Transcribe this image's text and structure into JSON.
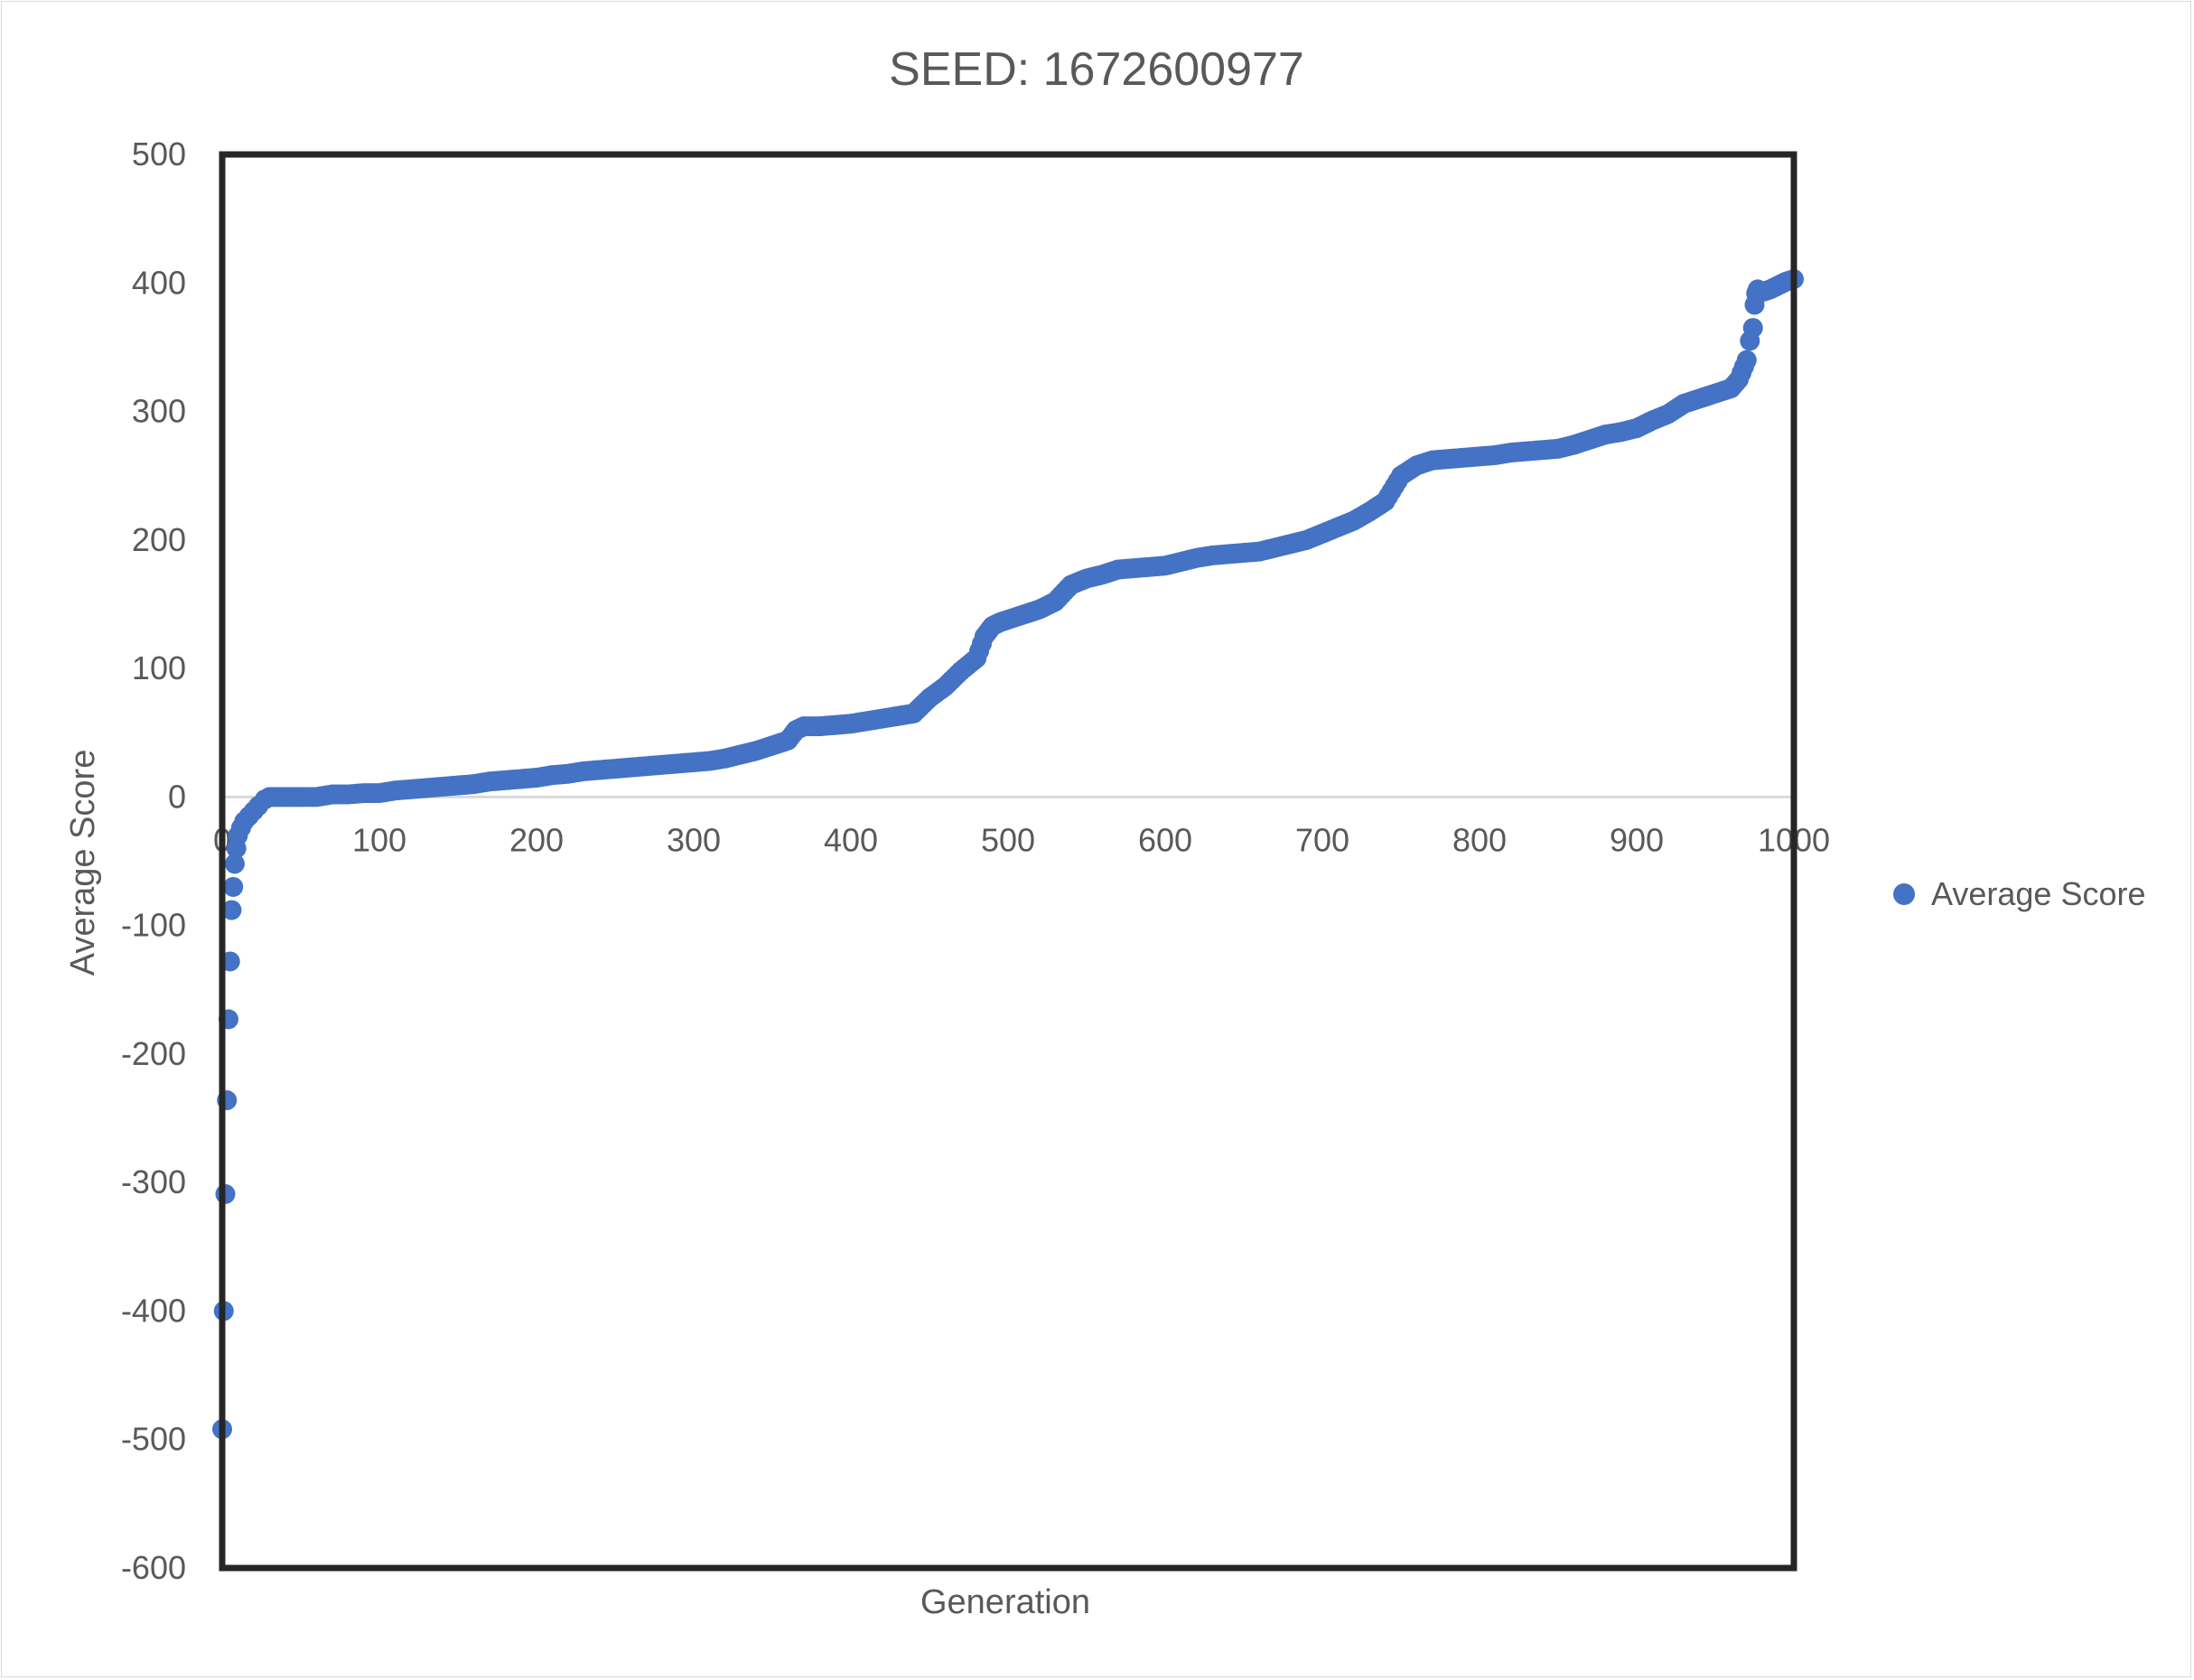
{
  "chart_data": {
    "type": "scatter",
    "title": "SEED: 1672600977",
    "xlabel": "Generation",
    "ylabel": "Average Score",
    "xlim": [
      0,
      1000
    ],
    "ylim": [
      -600,
      500
    ],
    "x_ticks": [
      0,
      100,
      200,
      300,
      400,
      500,
      600,
      700,
      800,
      900,
      1000
    ],
    "y_ticks": [
      500,
      400,
      300,
      200,
      100,
      0,
      -100,
      -200,
      -300,
      -400,
      -500,
      -600
    ],
    "grid": false,
    "legend_position": "right",
    "colors": {
      "series": "#4472c4",
      "zero_line": "#d9d9d9",
      "plot_border": "#262626",
      "text": "#595959"
    },
    "series": [
      {
        "name": "Average Score",
        "x": [
          0,
          1,
          2,
          3,
          4,
          5,
          6,
          7,
          8,
          9,
          10,
          12,
          14,
          17,
          20,
          23,
          27,
          30,
          33,
          35,
          38,
          40,
          45,
          50,
          60,
          70,
          80,
          90,
          100,
          110,
          120,
          130,
          140,
          150,
          160,
          170,
          180,
          190,
          200,
          210,
          220,
          230,
          240,
          250,
          260,
          270,
          280,
          290,
          300,
          310,
          320,
          330,
          340,
          350,
          360,
          365,
          370,
          380,
          390,
          400,
          410,
          420,
          430,
          440,
          450,
          460,
          470,
          480,
          485,
          490,
          495,
          500,
          510,
          520,
          530,
          540,
          550,
          560,
          570,
          580,
          590,
          600,
          610,
          620,
          630,
          640,
          650,
          660,
          670,
          680,
          690,
          700,
          710,
          720,
          730,
          740,
          750,
          760,
          770,
          780,
          790,
          800,
          810,
          820,
          830,
          840,
          850,
          860,
          870,
          880,
          890,
          900,
          910,
          920,
          930,
          940,
          950,
          960,
          965,
          970,
          972,
          974,
          975,
          976,
          977,
          978,
          980,
          985,
          990,
          995,
          1000
        ],
        "y": [
          -492,
          -400,
          -309,
          -236,
          -173,
          -128,
          -88,
          -70,
          -52,
          -40,
          -30,
          -24,
          -19,
          -15,
          -11,
          -7,
          -2,
          0,
          0,
          0,
          0,
          0,
          0,
          0,
          0,
          2,
          2,
          3,
          3,
          5,
          6,
          7,
          8,
          9,
          10,
          12,
          13,
          14,
          15,
          17,
          18,
          20,
          21,
          22,
          23,
          24,
          25,
          26,
          27,
          28,
          30,
          33,
          36,
          40,
          44,
          52,
          55,
          55,
          56,
          57,
          59,
          61,
          63,
          65,
          77,
          86,
          98,
          108,
          125,
          133,
          136,
          138,
          142,
          146,
          152,
          165,
          170,
          173,
          177,
          178,
          179,
          180,
          183,
          186,
          188,
          189,
          190,
          191,
          194,
          197,
          200,
          205,
          210,
          215,
          222,
          230,
          250,
          258,
          262,
          263,
          264,
          265,
          266,
          268,
          269,
          270,
          271,
          274,
          278,
          282,
          284,
          287,
          293,
          298,
          306,
          310,
          314,
          318,
          325,
          340,
          355,
          365,
          383,
          392,
          395,
          394,
          393,
          395,
          398,
          401,
          403
        ]
      }
    ]
  }
}
